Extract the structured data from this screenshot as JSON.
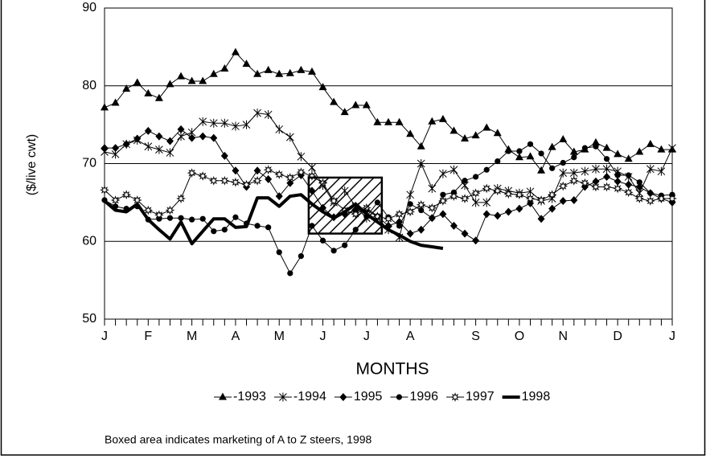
{
  "chart_data": {
    "type": "line",
    "y_label": "($/live cwt)",
    "x_label": "MONTHS",
    "footnote": "Boxed area indicates marketing of A to Z steers, 1998",
    "categories": [
      "J",
      null,
      null,
      null,
      "F",
      null,
      null,
      null,
      "M",
      null,
      null,
      null,
      "A",
      null,
      null,
      null,
      "M",
      null,
      null,
      null,
      "J",
      null,
      null,
      null,
      "J",
      null,
      null,
      null,
      "A",
      null,
      null,
      null,
      null,
      null,
      "S",
      null,
      null,
      null,
      "O",
      null,
      null,
      null,
      "N",
      null,
      null,
      null,
      null,
      "D",
      null,
      null,
      null,
      null,
      "J"
    ],
    "ylim": [
      50,
      90
    ],
    "yticks": [
      50,
      60,
      70,
      80,
      90
    ],
    "grid": true,
    "shaded_region": {
      "x": [
        18.7,
        25.4
      ],
      "y": [
        61,
        68.2
      ]
    },
    "series": [
      {
        "name": "-1993",
        "color": "#000000",
        "marker": "triangle",
        "width": 1,
        "values": [
          77.2,
          77.8,
          79.6,
          80.4,
          79.0,
          78.4,
          80.2,
          81.2,
          80.6,
          80.6,
          81.5,
          82.2,
          84.3,
          82.8,
          81.5,
          82.0,
          81.5,
          81.6,
          82.0,
          81.8,
          79.8,
          77.9,
          76.6,
          77.5,
          77.5,
          75.3,
          75.3,
          75.3,
          73.8,
          72.2,
          75.4,
          75.7,
          74.2,
          73.2,
          73.6,
          74.6,
          73.9,
          71.8,
          70.8,
          70.9,
          69.1,
          72.1,
          73.1,
          71.5,
          71.8,
          72.7,
          72.0,
          71.2,
          70.6,
          71.5,
          72.5,
          71.8,
          71.8
        ]
      },
      {
        "name": "-1994",
        "color": "#000000",
        "marker": "asterisk",
        "width": 1,
        "values": [
          71.5,
          71.2,
          72.5,
          73.0,
          72.2,
          71.8,
          71.4,
          73.5,
          74.0,
          75.4,
          75.2,
          75.2,
          74.8,
          75.0,
          76.5,
          76.3,
          74.4,
          73.4,
          70.9,
          69.5,
          67.2,
          65.0,
          66.5,
          64.5,
          63.0,
          63.0,
          61.5,
          60.5,
          66.0,
          70.0,
          66.8,
          68.7,
          69.2,
          67.2,
          65.0,
          65.0,
          66.8,
          66.5,
          66.2,
          66.4,
          65.2,
          65.5,
          68.8,
          68.8,
          69.0,
          69.3,
          69.3,
          69.0,
          68.3,
          66.2,
          69.3,
          69.0,
          72.0
        ]
      },
      {
        "name": "1995",
        "color": "#000000",
        "marker": "diamond",
        "width": 1,
        "values": [
          72.0,
          72.0,
          72.5,
          73.2,
          74.2,
          73.5,
          72.9,
          74.4,
          73.3,
          73.5,
          73.3,
          71.0,
          69.1,
          67.0,
          69.1,
          68.0,
          65.8,
          67.5,
          68.5,
          66.5,
          64.3,
          63.1,
          63.5,
          64.0,
          64.0,
          63.2,
          62.0,
          62.5,
          61.0,
          61.5,
          63.0,
          63.5,
          62.0,
          61.0,
          60.1,
          63.5,
          63.3,
          63.8,
          64.2,
          64.9,
          62.9,
          64.2,
          65.2,
          65.3,
          67.0,
          67.7,
          68.3,
          67.7,
          67.3,
          67.0,
          66.2,
          65.5,
          65.0
        ]
      },
      {
        "name": "1996",
        "color": "#000000",
        "marker": "circle",
        "width": 1,
        "values": [
          65.3,
          64.5,
          64.2,
          64.5,
          62.8,
          62.9,
          63.0,
          63.0,
          62.8,
          62.9,
          61.3,
          61.5,
          63.1,
          62.3,
          62.0,
          61.8,
          58.6,
          55.9,
          58.1,
          62.0,
          60.1,
          58.8,
          59.5,
          61.5,
          63.2,
          65.0,
          63.1,
          62.0,
          64.8,
          64.0,
          63.0,
          66.0,
          66.3,
          67.8,
          68.3,
          69.2,
          70.3,
          71.6,
          71.6,
          72.5,
          71.3,
          69.4,
          70.1,
          70.8,
          72.0,
          72.2,
          70.6,
          68.5,
          68.5,
          67.6,
          66.2,
          65.9,
          66.0
        ]
      },
      {
        "name": "1997",
        "color": "#000000",
        "marker": "star",
        "width": 1,
        "values": [
          66.6,
          65.3,
          66.0,
          65.3,
          64.0,
          63.4,
          64.0,
          65.5,
          68.8,
          68.4,
          67.8,
          67.8,
          67.6,
          67.3,
          67.8,
          69.2,
          68.6,
          68.2,
          68.9,
          68.4,
          67.5,
          65.2,
          64.0,
          63.5,
          64.3,
          63.2,
          62.9,
          63.5,
          63.8,
          64.7,
          64.3,
          65.2,
          65.8,
          65.5,
          66.2,
          66.8,
          66.5,
          66.1,
          66.0,
          65.5,
          65.3,
          66.0,
          67.1,
          67.8,
          67.5,
          67.0,
          67.0,
          66.8,
          66.3,
          65.5,
          65.2,
          65.5,
          65.5
        ]
      },
      {
        "name": "1998",
        "color": "#000000",
        "marker": "none",
        "width": 4,
        "values": [
          65.2,
          64.0,
          63.8,
          64.8,
          62.8,
          61.5,
          60.3,
          62.5,
          59.7,
          61.3,
          62.9,
          62.9,
          61.8,
          61.9,
          65.6,
          65.6,
          64.5,
          65.8,
          66.0,
          64.8,
          63.8,
          63.0,
          63.8,
          64.8,
          63.5,
          62.5,
          61.5,
          60.8,
          60.0,
          59.5,
          59.3,
          59.1,
          null,
          null,
          null,
          null,
          null,
          null,
          null,
          null,
          null,
          null,
          null,
          null,
          null,
          null,
          null,
          null,
          null,
          null,
          null,
          null,
          null
        ]
      }
    ]
  }
}
